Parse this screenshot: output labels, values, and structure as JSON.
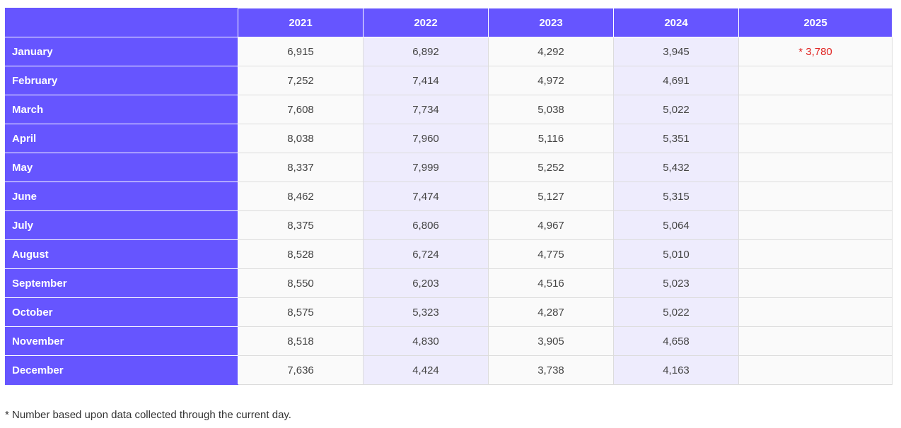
{
  "table": {
    "columns": [
      "2021",
      "2022",
      "2023",
      "2024",
      "2025"
    ],
    "rows": [
      {
        "month": "January",
        "values": [
          "6,915",
          "6,892",
          "4,292",
          "3,945",
          "* 3,780"
        ]
      },
      {
        "month": "February",
        "values": [
          "7,252",
          "7,414",
          "4,972",
          "4,691",
          ""
        ]
      },
      {
        "month": "March",
        "values": [
          "7,608",
          "7,734",
          "5,038",
          "5,022",
          ""
        ]
      },
      {
        "month": "April",
        "values": [
          "8,038",
          "7,960",
          "5,116",
          "5,351",
          ""
        ]
      },
      {
        "month": "May",
        "values": [
          "8,337",
          "7,999",
          "5,252",
          "5,432",
          ""
        ]
      },
      {
        "month": "June",
        "values": [
          "8,462",
          "7,474",
          "5,127",
          "5,315",
          ""
        ]
      },
      {
        "month": "July",
        "values": [
          "8,375",
          "6,806",
          "4,967",
          "5,064",
          ""
        ]
      },
      {
        "month": "August",
        "values": [
          "8,528",
          "6,724",
          "4,775",
          "5,010",
          ""
        ]
      },
      {
        "month": "September",
        "values": [
          "8,550",
          "6,203",
          "4,516",
          "5,023",
          ""
        ]
      },
      {
        "month": "October",
        "values": [
          "8,575",
          "5,323",
          "4,287",
          "5,022",
          ""
        ]
      },
      {
        "month": "November",
        "values": [
          "8,518",
          "4,830",
          "3,905",
          "4,658",
          ""
        ]
      },
      {
        "month": "December",
        "values": [
          "7,636",
          "4,424",
          "3,738",
          "4,163",
          ""
        ]
      }
    ]
  },
  "footnote": "* Number based upon data collected through the current day.",
  "colors": {
    "header_bg": "#6655ff",
    "header_text": "#ffffff",
    "alt_column_bg": "#eeecfd",
    "cell_bg": "#fafafa",
    "note_text": "#e0201e"
  },
  "chart_data": {
    "type": "table",
    "categories": [
      "January",
      "February",
      "March",
      "April",
      "May",
      "June",
      "July",
      "August",
      "September",
      "October",
      "November",
      "December"
    ],
    "series": [
      {
        "name": "2021",
        "values": [
          6915,
          7252,
          7608,
          8038,
          8337,
          8462,
          8375,
          8528,
          8550,
          8575,
          8518,
          7636
        ]
      },
      {
        "name": "2022",
        "values": [
          6892,
          7414,
          7734,
          7960,
          7999,
          7474,
          6806,
          6724,
          6203,
          5323,
          4830,
          4424
        ]
      },
      {
        "name": "2023",
        "values": [
          4292,
          4972,
          5038,
          5116,
          5252,
          5127,
          4967,
          4775,
          4516,
          4287,
          3905,
          3738
        ]
      },
      {
        "name": "2024",
        "values": [
          3945,
          4691,
          5022,
          5351,
          5432,
          5315,
          5064,
          5010,
          5023,
          5022,
          4658,
          4163
        ]
      },
      {
        "name": "2025",
        "values": [
          3780,
          null,
          null,
          null,
          null,
          null,
          null,
          null,
          null,
          null,
          null,
          null
        ]
      }
    ]
  }
}
